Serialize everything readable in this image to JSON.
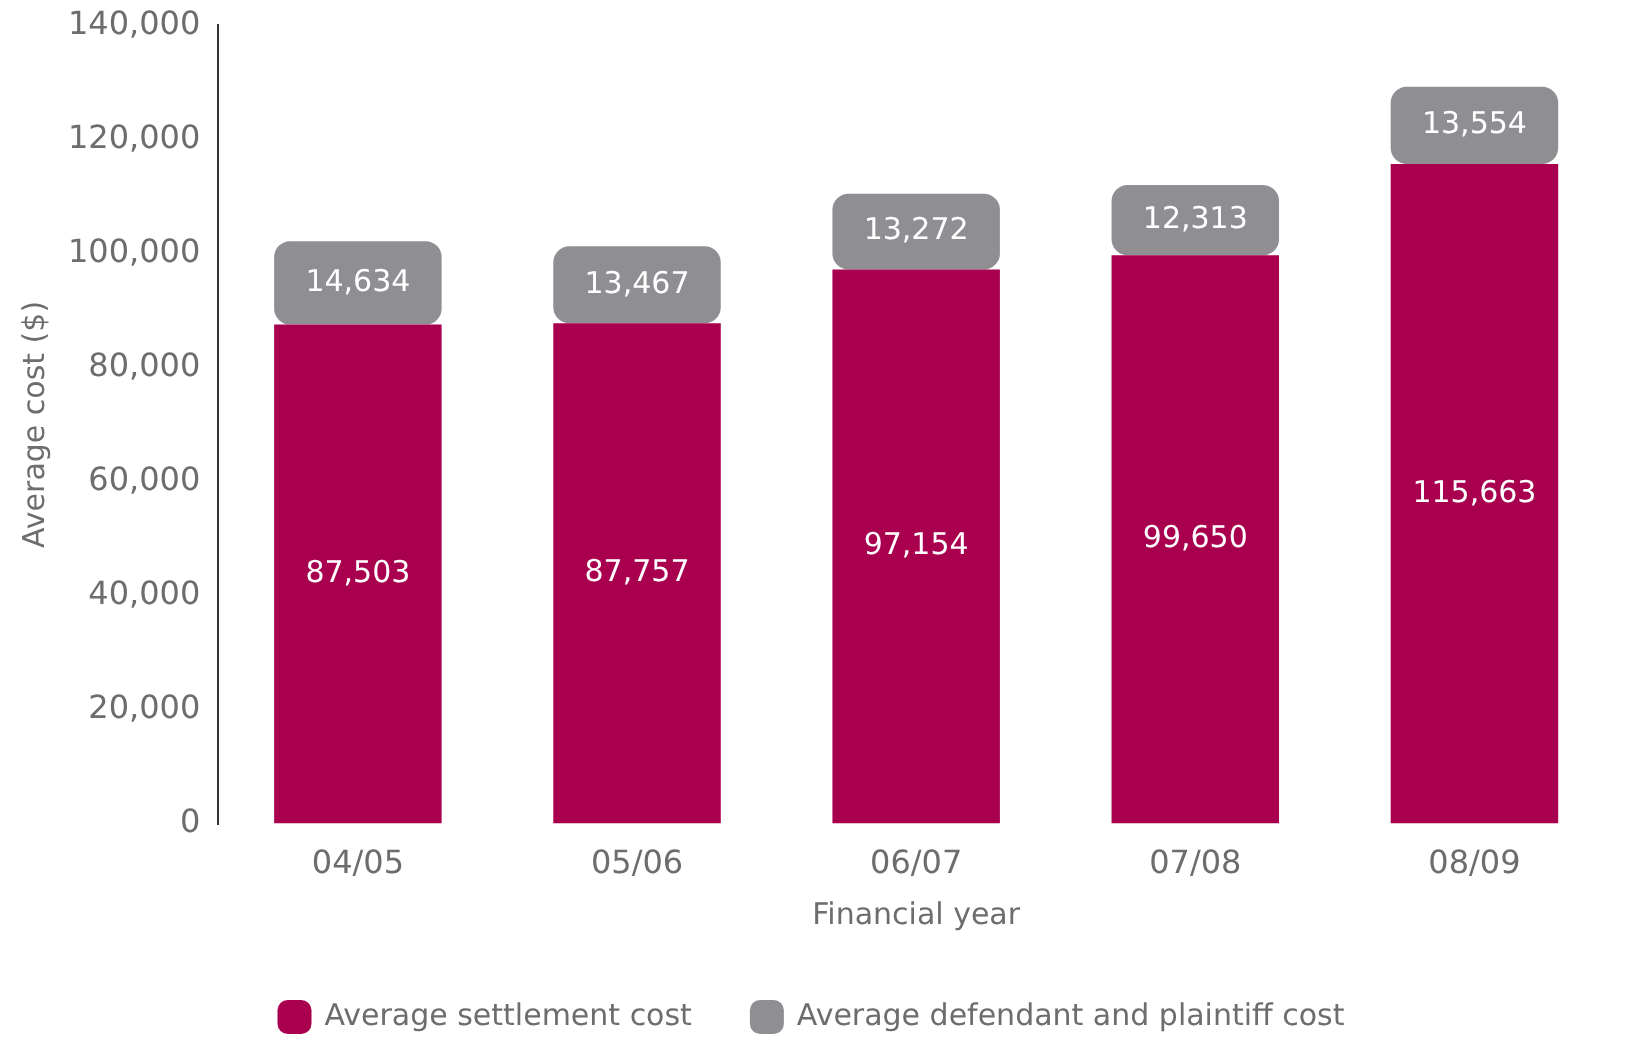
{
  "chart_data": {
    "type": "bar",
    "stacked": true,
    "xlabel": "Financial year",
    "ylabel": "Average cost ($)",
    "categories": [
      "04/05",
      "05/06",
      "06/07",
      "07/08",
      "08/09"
    ],
    "series": [
      {
        "name": "Average settlement cost",
        "color": "#a8004f",
        "values": [
          87503,
          87757,
          97154,
          99650,
          115663
        ],
        "value_labels": [
          "87,503",
          "87,757",
          "97,154",
          "99,650",
          "115,663"
        ]
      },
      {
        "name": "Average defendant and plaintiff cost",
        "color": "#8f8e93",
        "values": [
          14634,
          13467,
          13272,
          12313,
          13554
        ],
        "value_labels": [
          "14,634",
          "13,467",
          "13,272",
          "12,313",
          "13,554"
        ]
      }
    ],
    "ylim": [
      0,
      140000
    ],
    "yticks": [
      {
        "value": 0,
        "label": "0"
      },
      {
        "value": 20000,
        "label": "20,000"
      },
      {
        "value": 40000,
        "label": "40,000"
      },
      {
        "value": 60000,
        "label": "60,000"
      },
      {
        "value": 80000,
        "label": "80,000"
      },
      {
        "value": 100000,
        "label": "100,000"
      },
      {
        "value": 120000,
        "label": "120,000"
      },
      {
        "value": 140000,
        "label": "140,000"
      }
    ],
    "grid": false,
    "legend": "bottom"
  }
}
